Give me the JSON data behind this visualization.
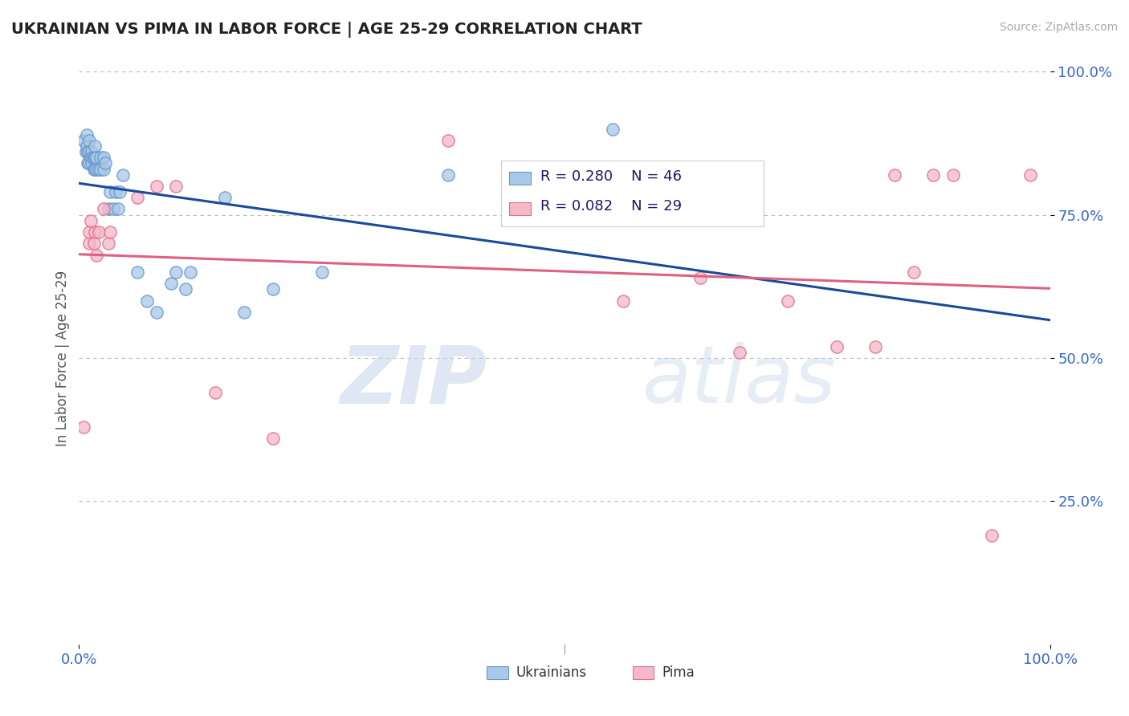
{
  "title": "UKRAINIAN VS PIMA IN LABOR FORCE | AGE 25-29 CORRELATION CHART",
  "source": "Source: ZipAtlas.com",
  "ylabel": "In Labor Force | Age 25-29",
  "xlim": [
    0,
    1.0
  ],
  "ylim": [
    0,
    1.0
  ],
  "watermark_zip": "ZIP",
  "watermark_atlas": "atlas",
  "ukrainian_color": "#aac8e8",
  "ukrainian_edge_color": "#6699cc",
  "pima_color": "#f5b8c8",
  "pima_edge_color": "#e07090",
  "ukrainian_R": 0.28,
  "ukrainian_N": 46,
  "pima_R": 0.082,
  "pima_N": 29,
  "ukrainian_line_color": "#1a4a9a",
  "pima_line_color": "#e06080",
  "ukr_x": [
    0.005,
    0.007,
    0.008,
    0.008,
    0.009,
    0.009,
    0.01,
    0.01,
    0.01,
    0.012,
    0.013,
    0.013,
    0.014,
    0.015,
    0.015,
    0.016,
    0.016,
    0.016,
    0.018,
    0.018,
    0.02,
    0.022,
    0.022,
    0.025,
    0.025,
    0.027,
    0.03,
    0.032,
    0.035,
    0.038,
    0.04,
    0.042,
    0.045,
    0.06,
    0.07,
    0.08,
    0.095,
    0.1,
    0.11,
    0.115,
    0.15,
    0.17,
    0.2,
    0.25,
    0.38,
    0.55
  ],
  "ukr_y": [
    0.88,
    0.86,
    0.87,
    0.89,
    0.84,
    0.86,
    0.84,
    0.86,
    0.88,
    0.85,
    0.84,
    0.86,
    0.85,
    0.83,
    0.85,
    0.83,
    0.85,
    0.87,
    0.83,
    0.85,
    0.83,
    0.83,
    0.85,
    0.83,
    0.85,
    0.84,
    0.76,
    0.79,
    0.76,
    0.79,
    0.76,
    0.79,
    0.82,
    0.65,
    0.6,
    0.58,
    0.63,
    0.65,
    0.62,
    0.65,
    0.78,
    0.58,
    0.62,
    0.65,
    0.82,
    0.9
  ],
  "pima_x": [
    0.005,
    0.01,
    0.01,
    0.012,
    0.015,
    0.016,
    0.018,
    0.02,
    0.025,
    0.03,
    0.032,
    0.06,
    0.08,
    0.1,
    0.14,
    0.2,
    0.38,
    0.56,
    0.64,
    0.68,
    0.73,
    0.78,
    0.82,
    0.84,
    0.86,
    0.88,
    0.9,
    0.94,
    0.98
  ],
  "pima_y": [
    0.38,
    0.7,
    0.72,
    0.74,
    0.7,
    0.72,
    0.68,
    0.72,
    0.76,
    0.7,
    0.72,
    0.78,
    0.8,
    0.8,
    0.44,
    0.36,
    0.88,
    0.6,
    0.64,
    0.51,
    0.6,
    0.52,
    0.52,
    0.82,
    0.65,
    0.82,
    0.82,
    0.19,
    0.82
  ]
}
